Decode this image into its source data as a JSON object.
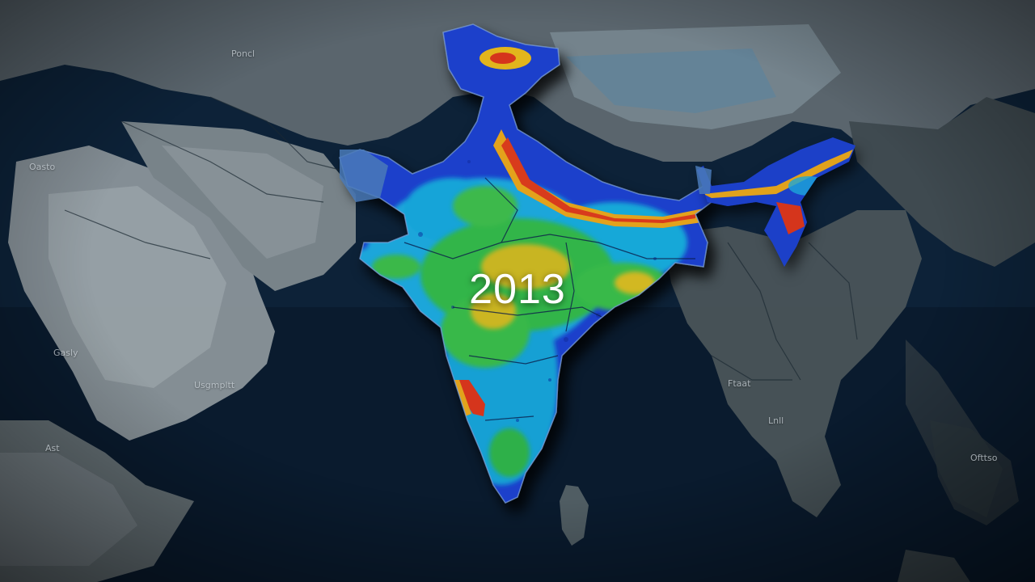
{
  "year": "2013",
  "place_labels": {
    "north_central_asia": "Poncl",
    "west_arabia_coast": "Oasto",
    "arabia_south": "Gasly",
    "arabia_southeast": "Usgmpltt",
    "horn_of_africa": "Ast",
    "southeast_asia_north": "Ftaat",
    "southeast_asia_south": "Lnll",
    "east_islands": "Ofttso"
  },
  "colors": {
    "ocean": "#0b1a2c",
    "land": "#6f7a80",
    "land_light": "#a4acaf",
    "heat_low": "#1d3fc8",
    "heat_mid_low": "#18a6d9",
    "heat_mid": "#36b84a",
    "heat_mid_high": "#e3c21f",
    "heat_high": "#d9341e"
  }
}
